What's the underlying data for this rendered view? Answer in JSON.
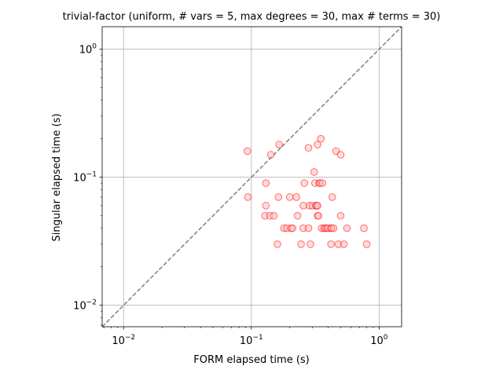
{
  "chart_data": {
    "type": "scatter",
    "title": "trivial-factor (uniform, # vars = 5, max degrees = 30, max # terms = 30)",
    "xlabel": "FORM elapsed time (s)",
    "ylabel": "Singular elapsed time (s)",
    "x_scale": "log",
    "y_scale": "log",
    "xlim": [
      0.0068,
      1.5
    ],
    "ylim": [
      0.0068,
      1.5
    ],
    "grid": true,
    "legend": "none",
    "x_ticks": [
      {
        "base": "10",
        "exp": "−2",
        "value": 0.01
      },
      {
        "base": "10",
        "exp": "−1",
        "value": 0.1
      },
      {
        "base": "10",
        "exp": "0",
        "value": 1
      }
    ],
    "y_ticks": [
      {
        "base": "10",
        "exp": "−2",
        "value": 0.01
      },
      {
        "base": "10",
        "exp": "−1",
        "value": 0.1
      },
      {
        "base": "10",
        "exp": "0",
        "value": 1
      }
    ],
    "reference_line": "y = x",
    "marker_color": "#ff0000",
    "marker_fill": "#ffc0c0",
    "reference_color": "#808080",
    "series": [
      {
        "x": [
          0.093,
          0.094,
          0.13,
          0.13,
          0.128,
          0.14,
          0.142,
          0.15,
          0.16,
          0.165,
          0.163,
          0.18,
          0.19,
          0.2,
          0.205,
          0.21,
          0.225,
          0.23,
          0.245,
          0.255,
          0.26,
          0.255,
          0.28,
          0.28,
          0.285,
          0.29,
          0.3,
          0.31,
          0.315,
          0.32,
          0.325,
          0.33,
          0.33,
          0.33,
          0.335,
          0.34,
          0.345,
          0.35,
          0.355,
          0.36,
          0.37,
          0.38,
          0.39,
          0.4,
          0.42,
          0.42,
          0.425,
          0.43,
          0.44,
          0.46,
          0.48,
          0.5,
          0.5,
          0.53,
          0.56,
          0.76,
          0.8
        ],
        "y": [
          0.16,
          0.07,
          0.09,
          0.06,
          0.05,
          0.05,
          0.15,
          0.05,
          0.03,
          0.18,
          0.07,
          0.04,
          0.04,
          0.07,
          0.04,
          0.04,
          0.07,
          0.05,
          0.03,
          0.04,
          0.09,
          0.06,
          0.17,
          0.04,
          0.06,
          0.03,
          0.06,
          0.11,
          0.09,
          0.06,
          0.06,
          0.05,
          0.06,
          0.18,
          0.05,
          0.09,
          0.09,
          0.2,
          0.04,
          0.09,
          0.04,
          0.04,
          0.04,
          0.04,
          0.04,
          0.03,
          0.04,
          0.07,
          0.04,
          0.16,
          0.03,
          0.05,
          0.15,
          0.03,
          0.04,
          0.04,
          0.03
        ]
      }
    ]
  }
}
